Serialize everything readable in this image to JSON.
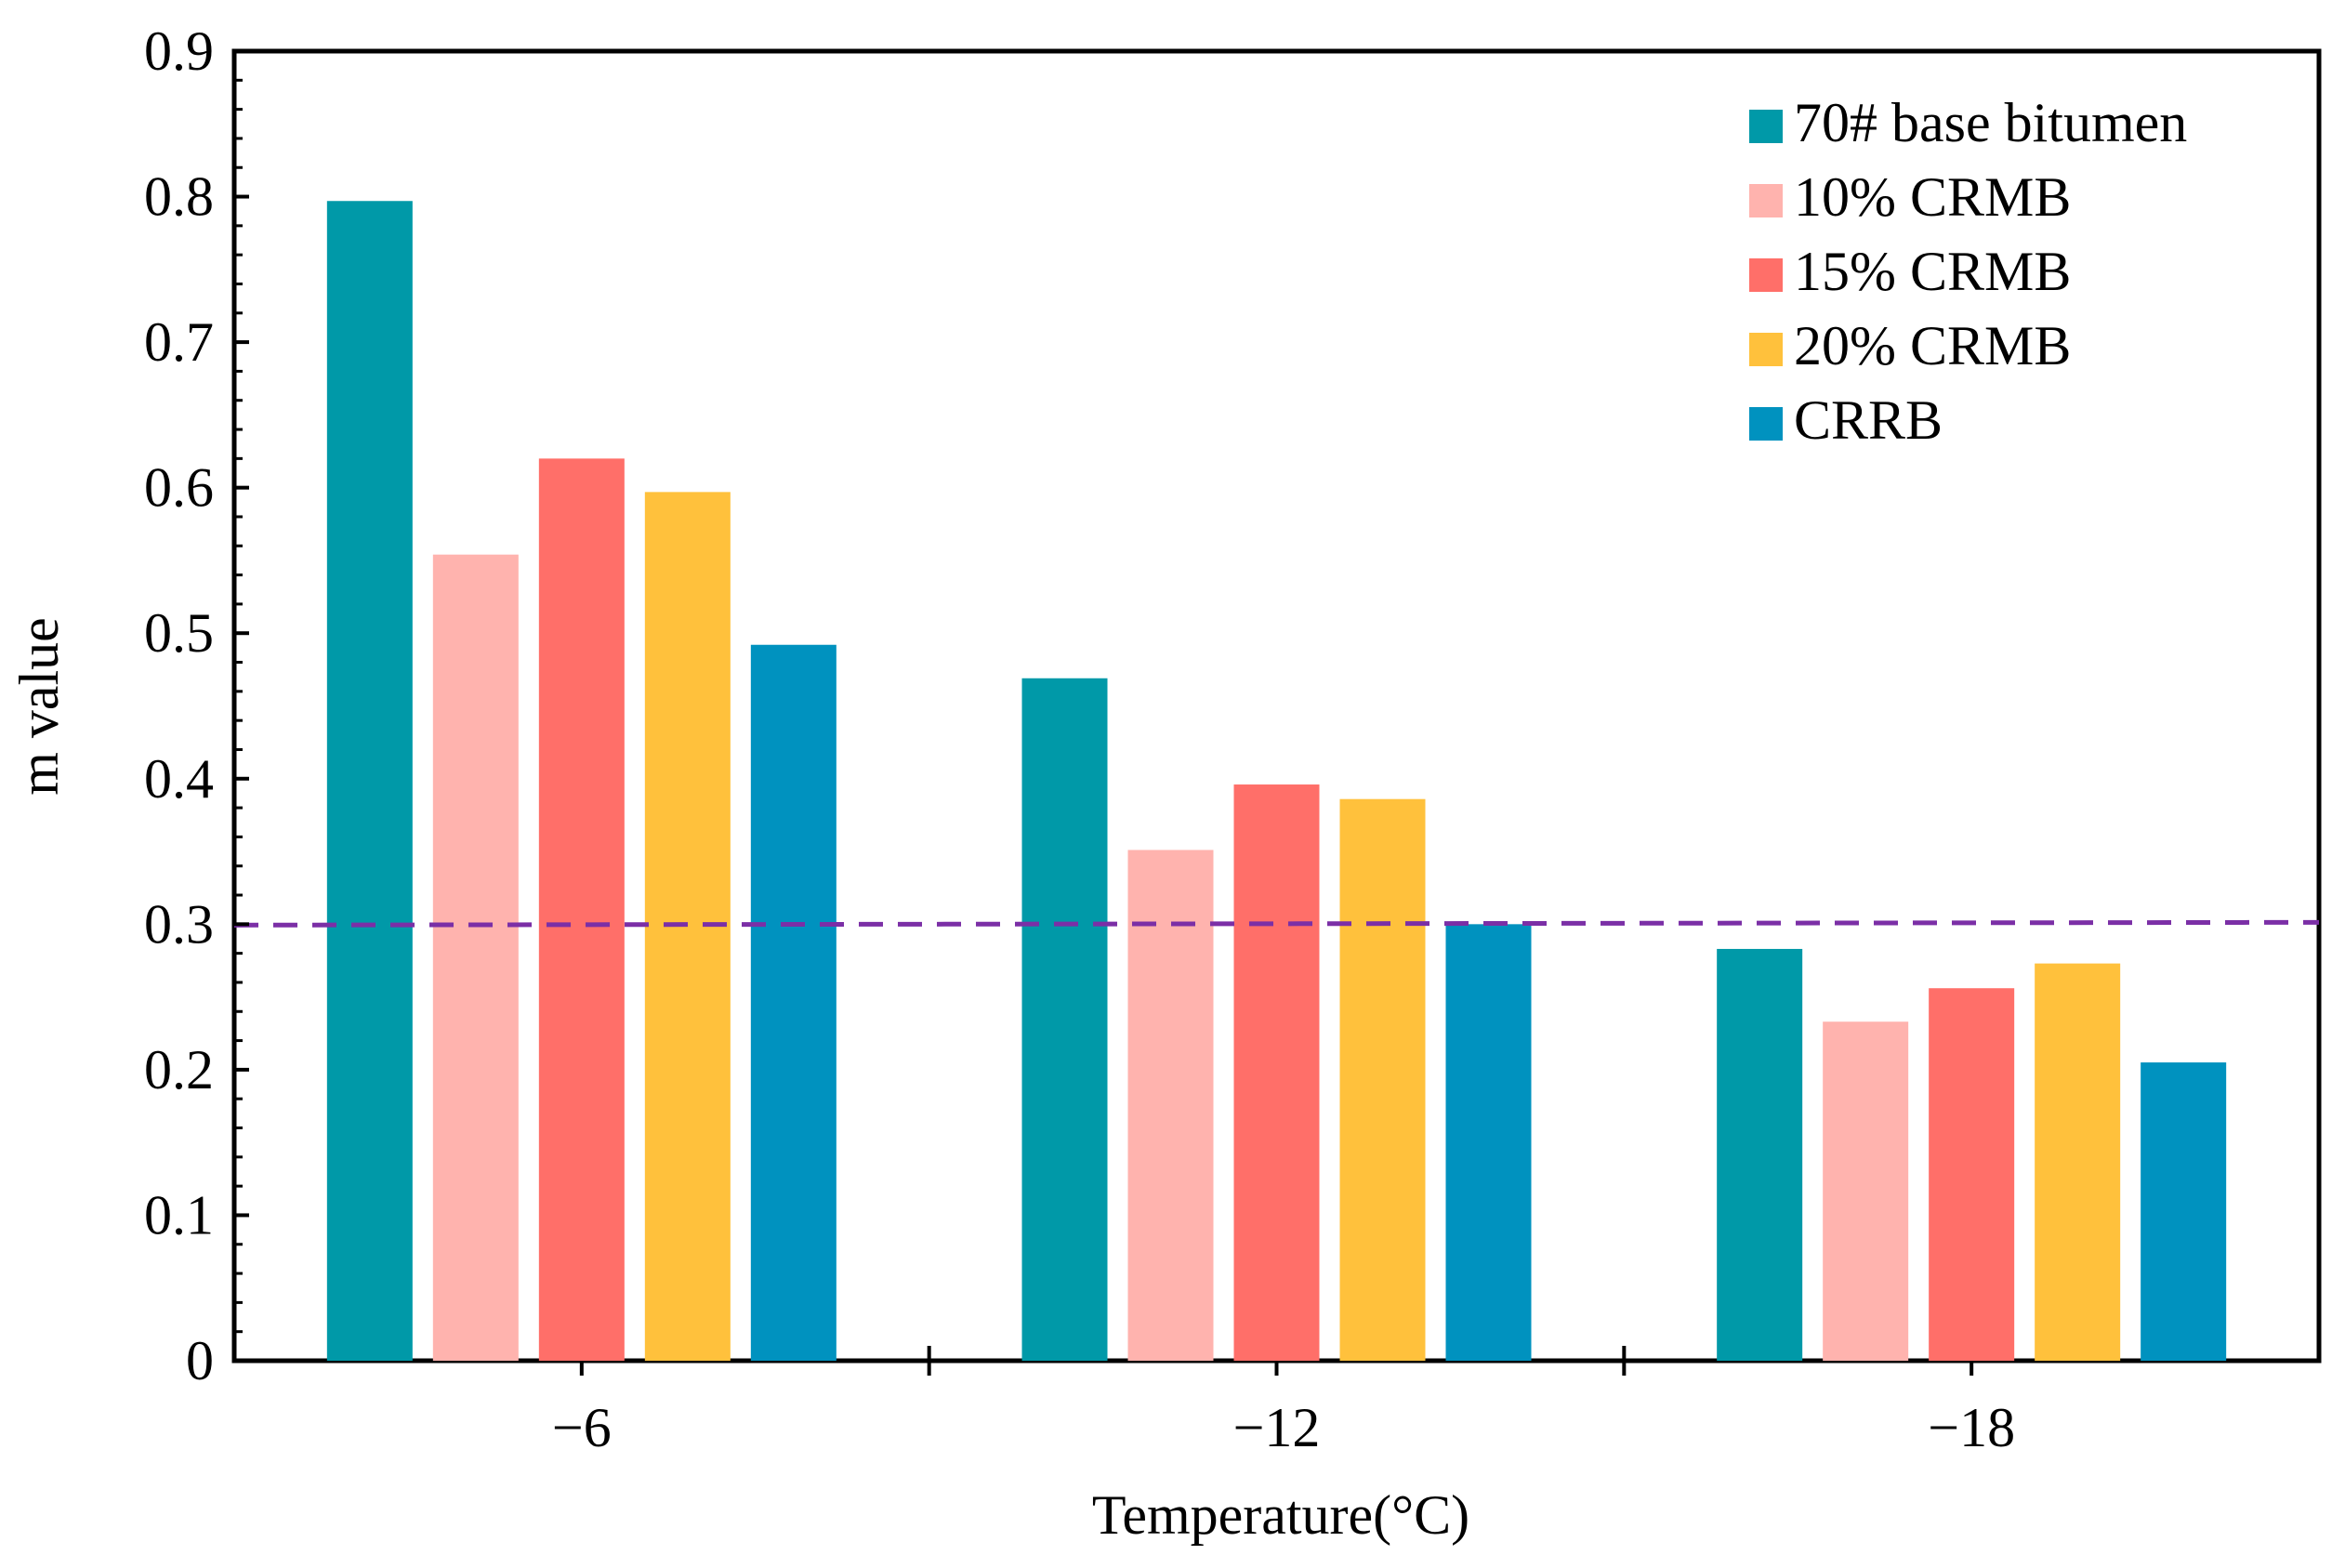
{
  "chart_data": {
    "type": "bar",
    "title": "",
    "xlabel": "Temperature(°C)",
    "ylabel": "m value",
    "categories": [
      "−6",
      "−12",
      "−18"
    ],
    "ylim": [
      0,
      0.9
    ],
    "yticks": [
      "0",
      "0.1",
      "0.2",
      "0.3",
      "0.4",
      "0.5",
      "0.6",
      "0.7",
      "0.8",
      "0.9"
    ],
    "series": [
      {
        "name": "70# base bitumen",
        "color": "#0099A8",
        "values": [
          0.797,
          0.469,
          0.283
        ]
      },
      {
        "name": "10% CRMB",
        "color": "#FFB3AE",
        "values": [
          0.554,
          0.351,
          0.233
        ]
      },
      {
        "name": "15% CRMB",
        "color": "#FF6F69",
        "values": [
          0.62,
          0.396,
          0.256
        ]
      },
      {
        "name": "20% CRMB",
        "color": "#FFC13C",
        "values": [
          0.597,
          0.386,
          0.273
        ]
      },
      {
        "name": "CRRB",
        "color": "#0092BF",
        "values": [
          0.492,
          0.3,
          0.205
        ]
      }
    ],
    "reference_line": {
      "value": 0.3,
      "style": "dashed",
      "color": "#7B2FA6"
    },
    "legend": {
      "position": "top-right"
    },
    "grid": false
  }
}
